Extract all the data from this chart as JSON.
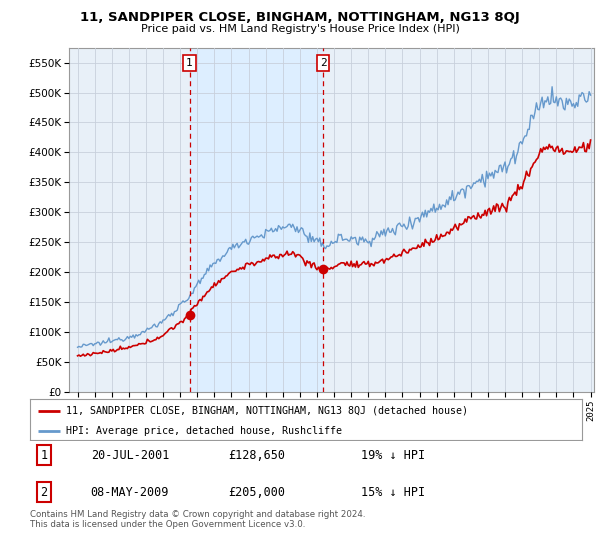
{
  "title": "11, SANDPIPER CLOSE, BINGHAM, NOTTINGHAM, NG13 8QJ",
  "subtitle": "Price paid vs. HM Land Registry's House Price Index (HPI)",
  "legend_line1": "11, SANDPIPER CLOSE, BINGHAM, NOTTINGHAM, NG13 8QJ (detached house)",
  "legend_line2": "HPI: Average price, detached house, Rushcliffe",
  "sale1_date": "20-JUL-2001",
  "sale1_price": "£128,650",
  "sale1_hpi": "19% ↓ HPI",
  "sale2_date": "08-MAY-2009",
  "sale2_price": "£205,000",
  "sale2_hpi": "15% ↓ HPI",
  "footer": "Contains HM Land Registry data © Crown copyright and database right 2024.\nThis data is licensed under the Open Government Licence v3.0.",
  "red_color": "#cc0000",
  "blue_color": "#6699cc",
  "shade_color": "#ddeeff",
  "background_color": "#e8f0f8",
  "grid_color": "#c8d0dc",
  "vline_color": "#cc0000",
  "sale1_year": 2001.55,
  "sale2_year": 2009.37,
  "sale1_price_val": 128650,
  "sale2_price_val": 205000,
  "ylim": [
    0,
    575000
  ],
  "yticks": [
    0,
    50000,
    100000,
    150000,
    200000,
    250000,
    300000,
    350000,
    400000,
    450000,
    500000,
    550000
  ],
  "xlim_min": 1994.5,
  "xlim_max": 2025.2
}
